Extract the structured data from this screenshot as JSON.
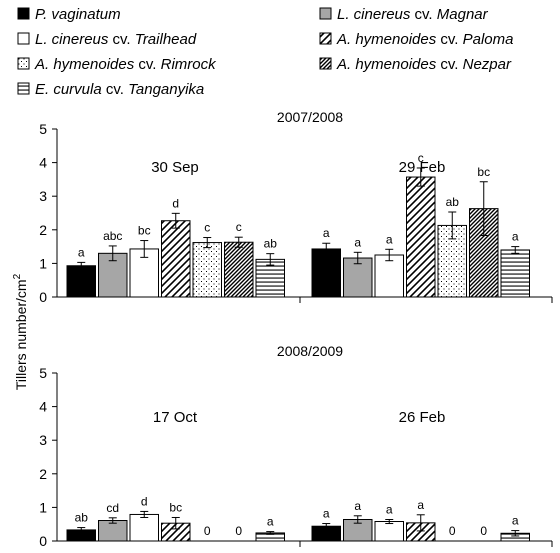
{
  "chart_data": {
    "type": "bar",
    "ylabel_main": "Tillers number/cm",
    "ylabel_sup": "2",
    "series": [
      {
        "name": "P. vaginatum",
        "name_parts": [
          {
            "t": "P. vaginatum",
            "i": true
          }
        ],
        "fill": "#000000",
        "pattern": "solid"
      },
      {
        "name": "L. cinereus cv. Magnar",
        "name_parts": [
          {
            "t": "L. cinereus",
            "i": true
          },
          {
            "t": " cv. ",
            "i": false
          },
          {
            "t": "Magnar",
            "i": true
          }
        ],
        "fill": "#a6a6a6",
        "pattern": "solid"
      },
      {
        "name": "L. cinereus cv. Trailhead",
        "name_parts": [
          {
            "t": "L. cinereus",
            "i": true
          },
          {
            "t": " cv. ",
            "i": false
          },
          {
            "t": "Trailhead",
            "i": true
          }
        ],
        "fill": "#ffffff",
        "pattern": "solid"
      },
      {
        "name": "A. hymenoides cv. Paloma",
        "name_parts": [
          {
            "t": "A. hymenoides",
            "i": true
          },
          {
            "t": " cv. ",
            "i": false
          },
          {
            "t": "Paloma",
            "i": true
          }
        ],
        "fill": "#ffffff",
        "pattern": "wide-diagonal"
      },
      {
        "name": "A. hymenoides cv. Rimrock",
        "name_parts": [
          {
            "t": "A. hymenoides",
            "i": true
          },
          {
            "t": " cv. ",
            "i": false
          },
          {
            "t": "Rimrock",
            "i": true
          }
        ],
        "fill": "#ffffff",
        "pattern": "dots"
      },
      {
        "name": "A. hymenoides cv. Nezpar",
        "name_parts": [
          {
            "t": "A. hymenoides",
            "i": true
          },
          {
            "t": " cv. ",
            "i": false
          },
          {
            "t": "Nezpar",
            "i": true
          }
        ],
        "fill": "#ffffff",
        "pattern": "dense-diagonal"
      },
      {
        "name": "E. curvula cv. Tanganyika",
        "name_parts": [
          {
            "t": "E. curvula",
            "i": true
          },
          {
            "t": " cv. ",
            "i": false
          },
          {
            "t": "Tanganyika",
            "i": true
          }
        ],
        "fill": "#ffffff",
        "pattern": "horizontal"
      }
    ],
    "panels": [
      {
        "season": "2007/2008",
        "ylim": [
          0,
          5
        ],
        "yticks": [
          0,
          1,
          2,
          3,
          4,
          5
        ],
        "groups": [
          {
            "label": "30 Sep",
            "values": [
              0.93,
              1.3,
              1.43,
              2.27,
              1.62,
              1.63,
              1.12
            ],
            "errors": [
              0.1,
              0.22,
              0.25,
              0.22,
              0.15,
              0.15,
              0.17
            ],
            "letters": [
              "a",
              "abc",
              "bc",
              "d",
              "c",
              "c",
              "ab"
            ]
          },
          {
            "label": "29  Feb",
            "values": [
              1.43,
              1.16,
              1.25,
              3.57,
              2.13,
              2.63,
              1.4
            ],
            "errors": [
              0.17,
              0.17,
              0.17,
              0.27,
              0.4,
              0.8,
              0.1
            ],
            "letters": [
              "a",
              "a",
              "a",
              "c",
              "ab",
              "bc",
              "a"
            ]
          }
        ]
      },
      {
        "season": "2008/2009",
        "ylim": [
          0,
          5
        ],
        "yticks": [
          0,
          1,
          2,
          3,
          4,
          5
        ],
        "groups": [
          {
            "label": "17 Oct",
            "values": [
              0.33,
              0.61,
              0.79,
              0.53,
              0,
              0,
              0.24
            ],
            "errors": [
              0.07,
              0.08,
              0.09,
              0.17,
              0,
              0,
              0.04
            ],
            "letters": [
              "ab",
              "cd",
              "d",
              "bc",
              "0",
              "0",
              "a"
            ]
          },
          {
            "label": "26 Feb",
            "values": [
              0.44,
              0.64,
              0.58,
              0.54,
              0,
              0,
              0.23
            ],
            "errors": [
              0.08,
              0.11,
              0.06,
              0.24,
              0,
              0,
              0.08
            ],
            "letters": [
              "a",
              "a",
              "a",
              "a",
              "0",
              "0",
              "a"
            ]
          }
        ]
      }
    ],
    "legend_placement": "top",
    "grid": false
  }
}
